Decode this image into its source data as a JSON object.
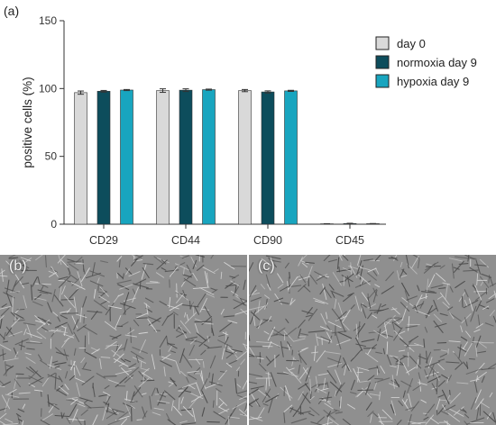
{
  "chart_data": {
    "type": "bar",
    "panel_label": "(a)",
    "categories": [
      "CD29",
      "CD44",
      "CD90",
      "CD45"
    ],
    "series": [
      {
        "name": "day 0",
        "color": "#d9d9d9",
        "values": [
          97,
          98.5,
          98.5,
          0.3
        ],
        "errors": [
          1.2,
          1.3,
          0.8,
          0.1
        ]
      },
      {
        "name": "normoxia day 9",
        "color": "#0d4d5c",
        "values": [
          98,
          98.8,
          97.5,
          0.5
        ],
        "errors": [
          0.6,
          1.0,
          0.8,
          0.2
        ]
      },
      {
        "name": "hypoxia day 9",
        "color": "#18a5bf",
        "values": [
          98.9,
          99.2,
          98.3,
          0.4
        ],
        "errors": [
          0.4,
          0.4,
          0.4,
          0.1
        ]
      }
    ],
    "ylabel": "positive cells (%)",
    "xlabel": "",
    "ylim": [
      0,
      150
    ],
    "yticks": [
      0,
      50,
      100,
      150
    ],
    "legend_position": "right",
    "grid": false
  },
  "micrographs": {
    "b_label": "(b)",
    "c_label": "(c)",
    "background": "#8f8f8f"
  }
}
